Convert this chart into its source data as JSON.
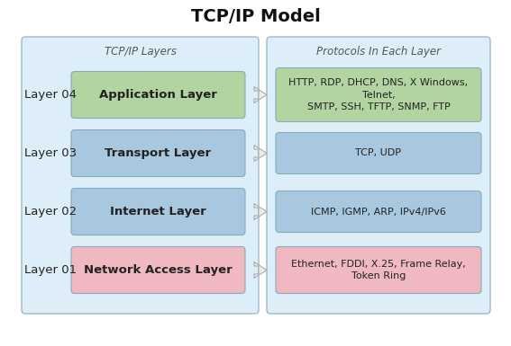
{
  "title": "TCP/IP Model",
  "left_panel_title": "TCP/IP Layers",
  "right_panel_title": "Protocols In Each Layer",
  "layers": [
    {
      "label": "Layer 04",
      "layer_name": "Application Layer",
      "protocols": "HTTP, RDP, DHCP, DNS, X Windows,\nTelnet,\nSMTP, SSH, TFTP, SNMP, FTP",
      "box_color": "#b2d4a0",
      "proto_color": "#b2d4a0"
    },
    {
      "label": "Layer 03",
      "layer_name": "Transport Layer",
      "protocols": "TCP, UDP",
      "box_color": "#a8c8e0",
      "proto_color": "#a8c8e0"
    },
    {
      "label": "Layer 02",
      "layer_name": "Internet Layer",
      "protocols": "ICMP, IGMP, ARP, IPv4/IPv6",
      "box_color": "#a8c8e0",
      "proto_color": "#a8c8e0"
    },
    {
      "label": "Layer 01",
      "layer_name": "Network Access Layer",
      "protocols": "Ethernet, FDDI, X.25, Frame Relay,\nToken Ring",
      "box_color": "#f0b8c0",
      "proto_color": "#f0b8c0"
    }
  ],
  "panel_bg": "#ddeef8",
  "fig_bg": "#ffffff",
  "title_fontsize": 14,
  "panel_title_fontsize": 8.5,
  "label_fontsize": 9.5,
  "layer_fontsize": 9.5,
  "proto_fontsize": 8
}
